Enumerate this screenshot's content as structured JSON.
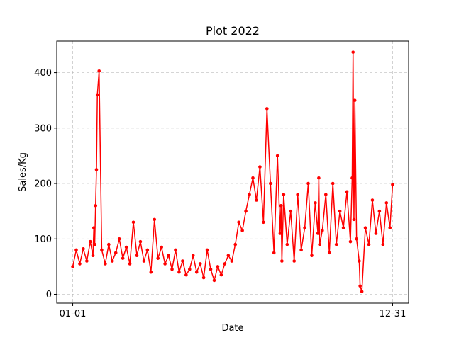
{
  "chart_data": {
    "type": "line",
    "title": "Plot 2022",
    "xlabel": "Date",
    "ylabel": "Sales/Kg",
    "x_start": "2022-01-01",
    "x_end": "2022-12-31",
    "x_ticks": [
      {
        "date": "2022-01-01",
        "label": "01-01"
      },
      {
        "date": "2022-12-31",
        "label": "12-31"
      }
    ],
    "ylim": [
      -16,
      457
    ],
    "y_ticks": [
      0,
      100,
      200,
      300,
      400
    ],
    "grid": true,
    "color": "#ff0000",
    "series": [
      {
        "name": "",
        "x": [
          "2022-01-01",
          "2022-01-05",
          "2022-01-09",
          "2022-01-13",
          "2022-01-17",
          "2022-01-21",
          "2022-01-24",
          "2022-01-25",
          "2022-01-26",
          "2022-01-27",
          "2022-01-28",
          "2022-01-29",
          "2022-01-31",
          "2022-02-03",
          "2022-02-07",
          "2022-02-11",
          "2022-02-15",
          "2022-02-19",
          "2022-02-23",
          "2022-02-27",
          "2022-03-03",
          "2022-03-07",
          "2022-03-11",
          "2022-03-15",
          "2022-03-19",
          "2022-03-23",
          "2022-03-27",
          "2022-03-31",
          "2022-04-04",
          "2022-04-08",
          "2022-04-12",
          "2022-04-16",
          "2022-04-20",
          "2022-04-24",
          "2022-04-28",
          "2022-05-02",
          "2022-05-06",
          "2022-05-10",
          "2022-05-14",
          "2022-05-18",
          "2022-05-22",
          "2022-05-26",
          "2022-05-30",
          "2022-06-03",
          "2022-06-07",
          "2022-06-11",
          "2022-06-15",
          "2022-06-19",
          "2022-06-23",
          "2022-06-27",
          "2022-07-01",
          "2022-07-05",
          "2022-07-09",
          "2022-07-13",
          "2022-07-17",
          "2022-07-21",
          "2022-07-25",
          "2022-07-29",
          "2022-08-02",
          "2022-08-06",
          "2022-08-10",
          "2022-08-14",
          "2022-08-18",
          "2022-08-22",
          "2022-08-25",
          "2022-08-26",
          "2022-08-27",
          "2022-08-29",
          "2022-09-02",
          "2022-09-06",
          "2022-09-10",
          "2022-09-14",
          "2022-09-18",
          "2022-09-22",
          "2022-09-26",
          "2022-09-30",
          "2022-10-04",
          "2022-10-07",
          "2022-10-08",
          "2022-10-09",
          "2022-10-12",
          "2022-10-16",
          "2022-10-20",
          "2022-10-24",
          "2022-10-28",
          "2022-11-01",
          "2022-11-05",
          "2022-11-09",
          "2022-11-13",
          "2022-11-15",
          "2022-11-16",
          "2022-11-17",
          "2022-11-18",
          "2022-11-20",
          "2022-11-23",
          "2022-11-24",
          "2022-11-26",
          "2022-11-30",
          "2022-12-04",
          "2022-12-08",
          "2022-12-12",
          "2022-12-16",
          "2022-12-20",
          "2022-12-24",
          "2022-12-28",
          "2022-12-31"
        ],
        "y": [
          50,
          80,
          55,
          82,
          60,
          95,
          70,
          120,
          90,
          160,
          225,
          360,
          403,
          80,
          55,
          90,
          60,
          75,
          100,
          65,
          85,
          55,
          130,
          70,
          95,
          60,
          80,
          40,
          135,
          65,
          85,
          55,
          70,
          45,
          80,
          40,
          60,
          35,
          45,
          70,
          40,
          55,
          30,
          80,
          45,
          25,
          50,
          35,
          55,
          70,
          60,
          90,
          130,
          115,
          150,
          180,
          210,
          170,
          230,
          130,
          335,
          200,
          75,
          250,
          110,
          160,
          60,
          180,
          90,
          150,
          60,
          180,
          80,
          120,
          200,
          70,
          165,
          110,
          210,
          90,
          115,
          180,
          75,
          200,
          90,
          150,
          120,
          185,
          95,
          210,
          437,
          135,
          350,
          100,
          60,
          15,
          5,
          120,
          90,
          170,
          110,
          150,
          90,
          165,
          120,
          198
        ]
      }
    ]
  }
}
